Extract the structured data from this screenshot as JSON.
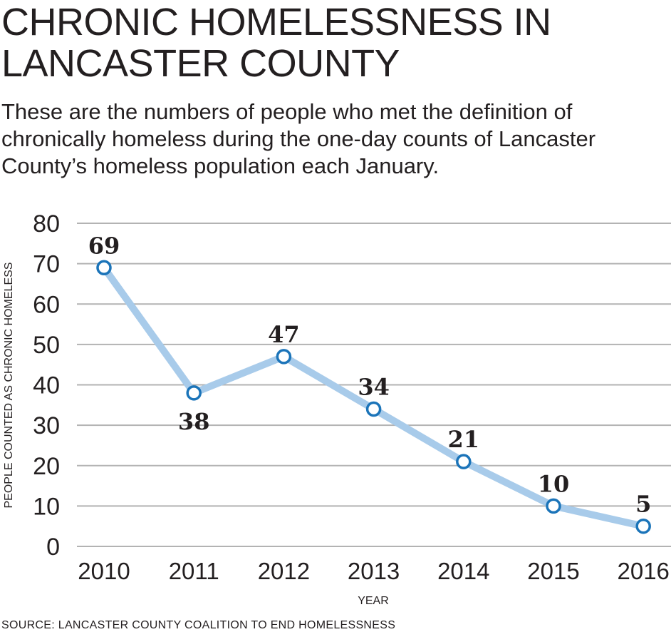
{
  "chart_data": {
    "type": "line",
    "title": "CHRONIC HOMELESSNESS IN LANCASTER COUNTY",
    "subtitle": "These are the numbers of people who met the definition of chronically homeless during the one-day counts of Lancaster County’s homeless population each January.",
    "xlabel": "YEAR",
    "ylabel": "PEOPLE COUNTED AS CHRONIC HOMELESS",
    "categories": [
      "2010",
      "2011",
      "2012",
      "2013",
      "2014",
      "2015",
      "2016"
    ],
    "values": [
      69,
      38,
      47,
      34,
      21,
      10,
      5
    ],
    "data_labels": [
      "69",
      "38",
      "47",
      "34",
      "21",
      "10",
      "5"
    ],
    "yticks": [
      "0",
      "10",
      "20",
      "30",
      "40",
      "50",
      "60",
      "70",
      "80"
    ],
    "ylim": [
      0,
      80
    ],
    "grid": true,
    "colors": {
      "line": "#a8cbea",
      "marker": "#1b74b9",
      "grid": "#b3b3b3"
    }
  },
  "source": "SOURCE: LANCASTER COUNTY COALITION TO END HOMELESSNESS"
}
